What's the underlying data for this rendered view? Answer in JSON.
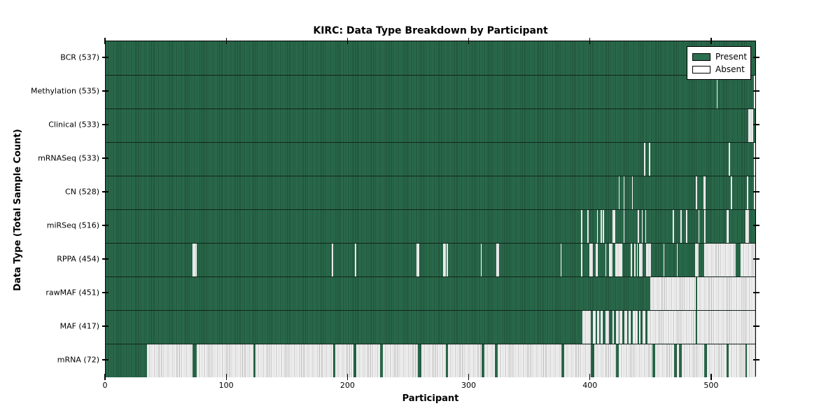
{
  "chart_data": {
    "type": "heatmap",
    "title": "KIRC: Data Type Breakdown by Participant",
    "xlabel": "Participant",
    "ylabel": "Data Type (Total Sample Count)",
    "x_max": 537,
    "x_ticks": [
      0,
      100,
      200,
      300,
      400,
      500
    ],
    "x_tick_labels": [
      "0",
      "100",
      "200",
      "300",
      "400",
      "500"
    ],
    "grid": false,
    "legend": {
      "position": "upper right",
      "entries": [
        {
          "label": "Present",
          "color": "#2c6f4f"
        },
        {
          "label": "Absent",
          "color": "#ffffff"
        }
      ]
    },
    "colors": {
      "present": "#2c6f4f",
      "present_edge": "#1d4b34",
      "absent": "#ffffff",
      "absent_edge": "#b2b2b2",
      "axis": "#000000"
    },
    "rows": [
      {
        "label": "BCR (537)",
        "data_type": "BCR",
        "count": 537,
        "absent_ranges": []
      },
      {
        "label": "Methylation (535)",
        "data_type": "Methylation",
        "count": 535,
        "absent_ranges": [
          [
            505,
            506
          ],
          [
            536,
            537
          ]
        ]
      },
      {
        "label": "Clinical (533)",
        "data_type": "Clinical",
        "count": 533,
        "absent_ranges": [
          [
            531,
            535
          ]
        ]
      },
      {
        "label": "mRNASeq (533)",
        "data_type": "mRNASeq",
        "count": 533,
        "absent_ranges": [
          [
            445,
            446
          ],
          [
            449,
            450
          ],
          [
            515,
            516
          ],
          [
            536,
            537
          ]
        ]
      },
      {
        "label": "CN (528)",
        "data_type": "CN",
        "count": 528,
        "absent_ranges": [
          [
            424,
            425
          ],
          [
            428,
            429
          ],
          [
            435,
            436
          ],
          [
            488,
            489
          ],
          [
            494,
            496
          ],
          [
            517,
            518
          ],
          [
            530,
            531
          ],
          [
            536,
            537
          ]
        ]
      },
      {
        "label": "miRSeq (516)",
        "data_type": "miRSeq",
        "count": 516,
        "absent_ranges": [
          [
            393,
            394
          ],
          [
            398,
            399
          ],
          [
            406,
            407
          ],
          [
            409,
            410
          ],
          [
            411,
            412
          ],
          [
            419,
            421
          ],
          [
            428,
            429
          ],
          [
            440,
            441
          ],
          [
            443,
            444
          ],
          [
            446,
            447
          ],
          [
            469,
            470
          ],
          [
            475,
            476
          ],
          [
            480,
            481
          ],
          [
            490,
            491
          ],
          [
            495,
            496
          ],
          [
            513,
            515
          ],
          [
            529,
            532
          ]
        ]
      },
      {
        "label": "RPPA (454)",
        "data_type": "RPPA",
        "count": 454,
        "absent_ranges": [
          [
            72,
            75
          ],
          [
            187,
            188
          ],
          [
            206,
            207
          ],
          [
            257,
            259
          ],
          [
            279,
            281
          ],
          [
            282,
            283
          ],
          [
            310,
            311
          ],
          [
            323,
            325
          ],
          [
            376,
            377
          ],
          [
            393,
            394
          ],
          [
            400,
            403
          ],
          [
            405,
            407
          ],
          [
            413,
            414
          ],
          [
            416,
            419
          ],
          [
            421,
            427
          ],
          [
            434,
            435
          ],
          [
            437,
            438
          ],
          [
            439,
            440
          ],
          [
            441,
            444
          ],
          [
            447,
            451
          ],
          [
            461,
            462
          ],
          [
            472,
            473
          ],
          [
            487,
            490
          ],
          [
            495,
            521
          ],
          [
            525,
            537
          ]
        ]
      },
      {
        "label": "rawMAF (451)",
        "data_type": "rawMAF",
        "count": 451,
        "absent_ranges": [
          [
            450,
            488
          ],
          [
            489,
            537
          ]
        ]
      },
      {
        "label": "MAF (417)",
        "data_type": "MAF",
        "count": 417,
        "absent_ranges": [
          [
            394,
            401
          ],
          [
            403,
            405
          ],
          [
            406,
            408
          ],
          [
            409,
            411
          ],
          [
            413,
            416
          ],
          [
            419,
            420
          ],
          [
            422,
            424
          ],
          [
            425,
            427
          ],
          [
            429,
            431
          ],
          [
            432,
            434
          ],
          [
            436,
            440
          ],
          [
            441,
            442
          ],
          [
            444,
            446
          ],
          [
            448,
            488
          ],
          [
            489,
            537
          ]
        ]
      },
      {
        "label": "mRNA (72)",
        "data_type": "mRNA",
        "count": 72,
        "absent_ranges": [
          [
            34,
            72
          ],
          [
            75,
            122
          ],
          [
            124,
            188
          ],
          [
            190,
            205
          ],
          [
            207,
            227
          ],
          [
            229,
            258
          ],
          [
            261,
            281
          ],
          [
            283,
            311
          ],
          [
            313,
            322
          ],
          [
            324,
            377
          ],
          [
            379,
            401
          ],
          [
            404,
            422
          ],
          [
            424,
            452
          ],
          [
            454,
            470
          ],
          [
            472,
            474
          ],
          [
            476,
            495
          ],
          [
            497,
            513
          ],
          [
            515,
            529
          ],
          [
            530,
            537
          ]
        ]
      }
    ]
  }
}
